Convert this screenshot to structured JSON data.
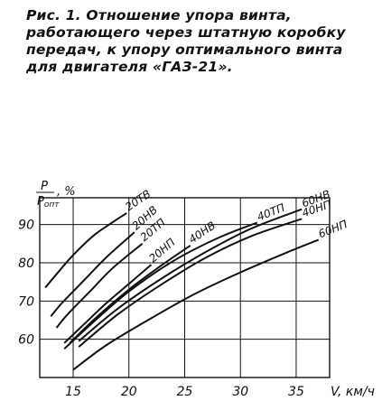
{
  "caption": {
    "figure": "Рис. 1.",
    "text": "Отношение упора винта, работающего через штатную коробку передач, к упору оптимального винта для двигателя «ГАЗ-21»."
  },
  "chart_data": {
    "type": "line",
    "ylabel_num": "P",
    "ylabel_den": "P",
    "ylabel_sub": "опт",
    "ylabel_unit": ", %",
    "xlabel": "V, км/ч",
    "xlim": [
      12,
      38
    ],
    "ylim": [
      50,
      97
    ],
    "xticks": [
      "15",
      "20",
      "25",
      "30",
      "35"
    ],
    "yticks": [
      "60",
      "70",
      "80",
      "90"
    ],
    "grid": true,
    "series": [
      {
        "name": "20ТВ",
        "x": [
          12.5,
          13.5,
          15,
          17,
          19.8
        ],
        "y": [
          73.5,
          77,
          82,
          87.5,
          93
        ]
      },
      {
        "name": "20НВ",
        "x": [
          13,
          14,
          16,
          18,
          20.5
        ],
        "y": [
          66,
          69.5,
          75.5,
          81.5,
          88
        ]
      },
      {
        "name": "20ТП",
        "x": [
          13.5,
          14.5,
          16.5,
          18.5,
          21.2
        ],
        "y": [
          63,
          66.5,
          72.5,
          78.5,
          85
        ]
      },
      {
        "name": "20НП",
        "x": [
          14.2,
          16,
          18,
          20,
          22
        ],
        "y": [
          59,
          64,
          69.5,
          74.5,
          79.5
        ]
      },
      {
        "name": "40НВ",
        "x": [
          14.7,
          17,
          20,
          23,
          25.5
        ],
        "y": [
          59,
          65.5,
          73,
          79.5,
          84.5
        ]
      },
      {
        "name": "40ТП",
        "x": [
          14.2,
          17,
          20,
          24,
          28,
          31.5
        ],
        "y": [
          57.5,
          65,
          72.5,
          80.5,
          86.5,
          90.5
        ]
      },
      {
        "name": "40НП",
        "x": [
          15.5,
          19,
          23,
          27,
          31,
          35.5
        ],
        "y": [
          58,
          66.5,
          74.5,
          81.5,
          87,
          91.5
        ]
      },
      {
        "name": "60НВ",
        "x": [
          15.5,
          19,
          23,
          27,
          31,
          35.5
        ],
        "y": [
          59.5,
          68,
          76,
          83,
          89,
          94
        ]
      },
      {
        "name": "60НП",
        "x": [
          15,
          18,
          22,
          26,
          30,
          34,
          37
        ],
        "y": [
          52,
          58.5,
          65.5,
          72,
          77.5,
          82.5,
          86
        ]
      }
    ]
  }
}
